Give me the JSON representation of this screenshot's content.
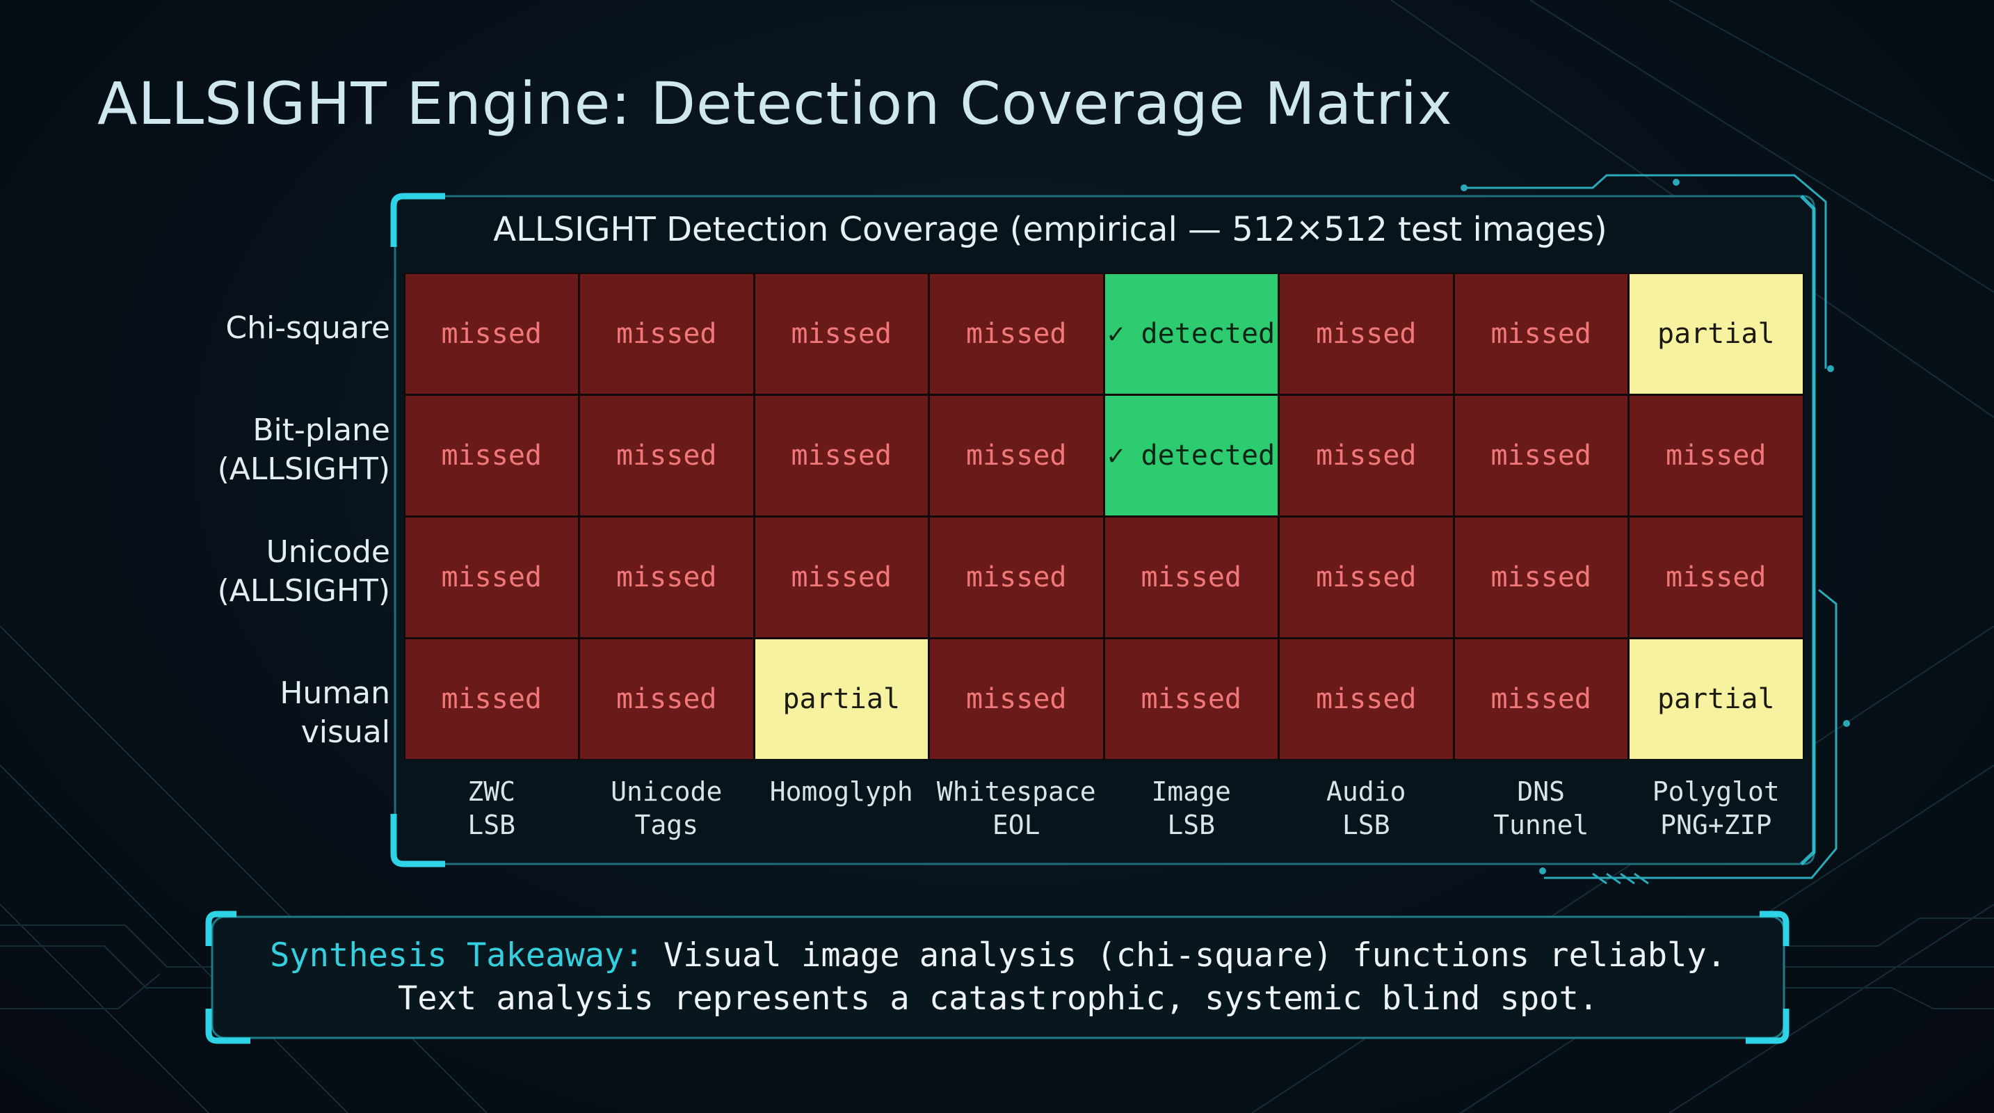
{
  "title": "ALLSIGHT Engine: Detection Coverage Matrix",
  "chart_data": {
    "type": "heatmap",
    "title": "ALLSIGHT Detection Coverage (empirical — 512×512 test images)",
    "rows": [
      "Chi-square",
      "Bit-plane\n(ALLSIGHT)",
      "Unicode\n(ALLSIGHT)",
      "Human visual"
    ],
    "columns": [
      "ZWC\nLSB",
      "Unicode\nTags",
      "Homoglyph",
      "Whitespace\nEOL",
      "Image\nLSB",
      "Audio\nLSB",
      "DNS\nTunnel",
      "Polyglot\nPNG+ZIP"
    ],
    "values": [
      [
        "missed",
        "missed",
        "missed",
        "missed",
        "detected",
        "missed",
        "missed",
        "partial"
      ],
      [
        "missed",
        "missed",
        "missed",
        "missed",
        "detected",
        "missed",
        "missed",
        "missed"
      ],
      [
        "missed",
        "missed",
        "missed",
        "missed",
        "missed",
        "missed",
        "missed",
        "missed"
      ],
      [
        "missed",
        "missed",
        "partial",
        "missed",
        "missed",
        "missed",
        "missed",
        "partial"
      ]
    ],
    "cell_labels": {
      "missed": "missed",
      "detected": "✓ detected",
      "partial": "partial"
    },
    "colors": {
      "missed": "#6b1a1a",
      "detected": "#2ecc71",
      "partial": "#f6f2a0"
    }
  },
  "takeaway": {
    "label": "Synthesis Takeaway:",
    "line1": "Visual image analysis (chi-square) functions reliably.",
    "line2": "Text analysis represents a catastrophic, systemic blind spot."
  },
  "accent_color": "#2fd3e6"
}
